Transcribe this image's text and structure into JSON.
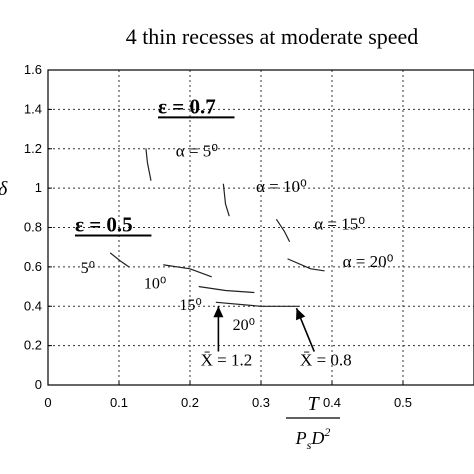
{
  "chart_data": {
    "type": "line",
    "title": "4 thin recesses at moderate speed",
    "xlabel_num": "T",
    "xlabel_den": "P_s D^2",
    "ylabel_partial": "δ",
    "xlim": [
      0,
      0.6
    ],
    "ylim": [
      0,
      1.6
    ],
    "xticks": [
      0,
      0.1,
      0.2,
      0.3,
      0.4,
      0.5
    ],
    "xtick_labels": [
      "0",
      "0.1",
      "0.2",
      "0.3",
      "0.4",
      "0.5"
    ],
    "yticks": [
      0,
      0.2,
      0.4,
      0.6,
      0.8,
      1.0,
      1.2,
      1.4,
      1.6
    ],
    "ytick_labels": [
      "0",
      "0.2",
      "0.4",
      "0.6",
      "0.8",
      "1",
      "1.2",
      "1.4",
      "1.6"
    ],
    "grid": true,
    "curves": [
      {
        "group": "ε = 0.7",
        "alpha": "5°",
        "x": [
          0.138,
          0.14,
          0.145
        ],
        "y": [
          1.2,
          1.13,
          1.04
        ]
      },
      {
        "group": "ε = 0.7",
        "alpha": "10°",
        "x": [
          0.247,
          0.25,
          0.255
        ],
        "y": [
          1.02,
          0.92,
          0.86
        ]
      },
      {
        "group": "ε = 0.7",
        "alpha": "15°",
        "x": [
          0.322,
          0.333,
          0.34
        ],
        "y": [
          0.84,
          0.78,
          0.73
        ]
      },
      {
        "group": "ε = 0.7",
        "alpha": "20°",
        "x": [
          0.338,
          0.37,
          0.389
        ],
        "y": [
          0.64,
          0.59,
          0.58
        ]
      },
      {
        "group": "ε = 0.5",
        "alpha": "5°",
        "x": [
          0.088,
          0.102,
          0.114
        ],
        "y": [
          0.67,
          0.63,
          0.6
        ]
      },
      {
        "group": "ε = 0.5",
        "alpha": "10°",
        "x": [
          0.163,
          0.2,
          0.23
        ],
        "y": [
          0.61,
          0.59,
          0.55
        ]
      },
      {
        "group": "ε = 0.5",
        "alpha": "15°",
        "x": [
          0.213,
          0.25,
          0.29
        ],
        "y": [
          0.5,
          0.48,
          0.47
        ]
      },
      {
        "group": "ε = 0.5",
        "alpha": "20°",
        "x": [
          0.237,
          0.3,
          0.353
        ],
        "y": [
          0.42,
          0.4,
          0.4
        ]
      }
    ],
    "annotations": {
      "eps07": "ε = 0.7",
      "eps05": "ε = 0.5",
      "a5": "α = 5⁰",
      "a10": "α = 10⁰",
      "a15": "α = 15⁰",
      "a20": "α = 20⁰",
      "b5": "5⁰",
      "b10": "10⁰",
      "b15": "15⁰",
      "b20": "20⁰",
      "xbar12": "X̄ = 1.2",
      "xbar08": "X̄ = 0.8"
    },
    "arrows": [
      {
        "label": "X̄ = 1.2",
        "from": [
          0.24,
          0.17
        ],
        "to": [
          0.24,
          0.4
        ]
      },
      {
        "label": "X̄ = 0.8",
        "from": [
          0.375,
          0.17
        ],
        "to": [
          0.35,
          0.39
        ]
      }
    ],
    "annotation_positions": {
      "eps07": [
        0.155,
        1.38
      ],
      "eps05": [
        0.038,
        0.78
      ],
      "a5": [
        0.18,
        1.16
      ],
      "a10": [
        0.293,
        0.98
      ],
      "a15": [
        0.375,
        0.79
      ],
      "a20": [
        0.415,
        0.6
      ],
      "b5": [
        0.046,
        0.57
      ],
      "b10": [
        0.135,
        0.49
      ],
      "b15": [
        0.185,
        0.38
      ],
      "b20": [
        0.26,
        0.28
      ],
      "xbar12": [
        0.215,
        0.1
      ],
      "xbar08": [
        0.355,
        0.1
      ]
    }
  }
}
